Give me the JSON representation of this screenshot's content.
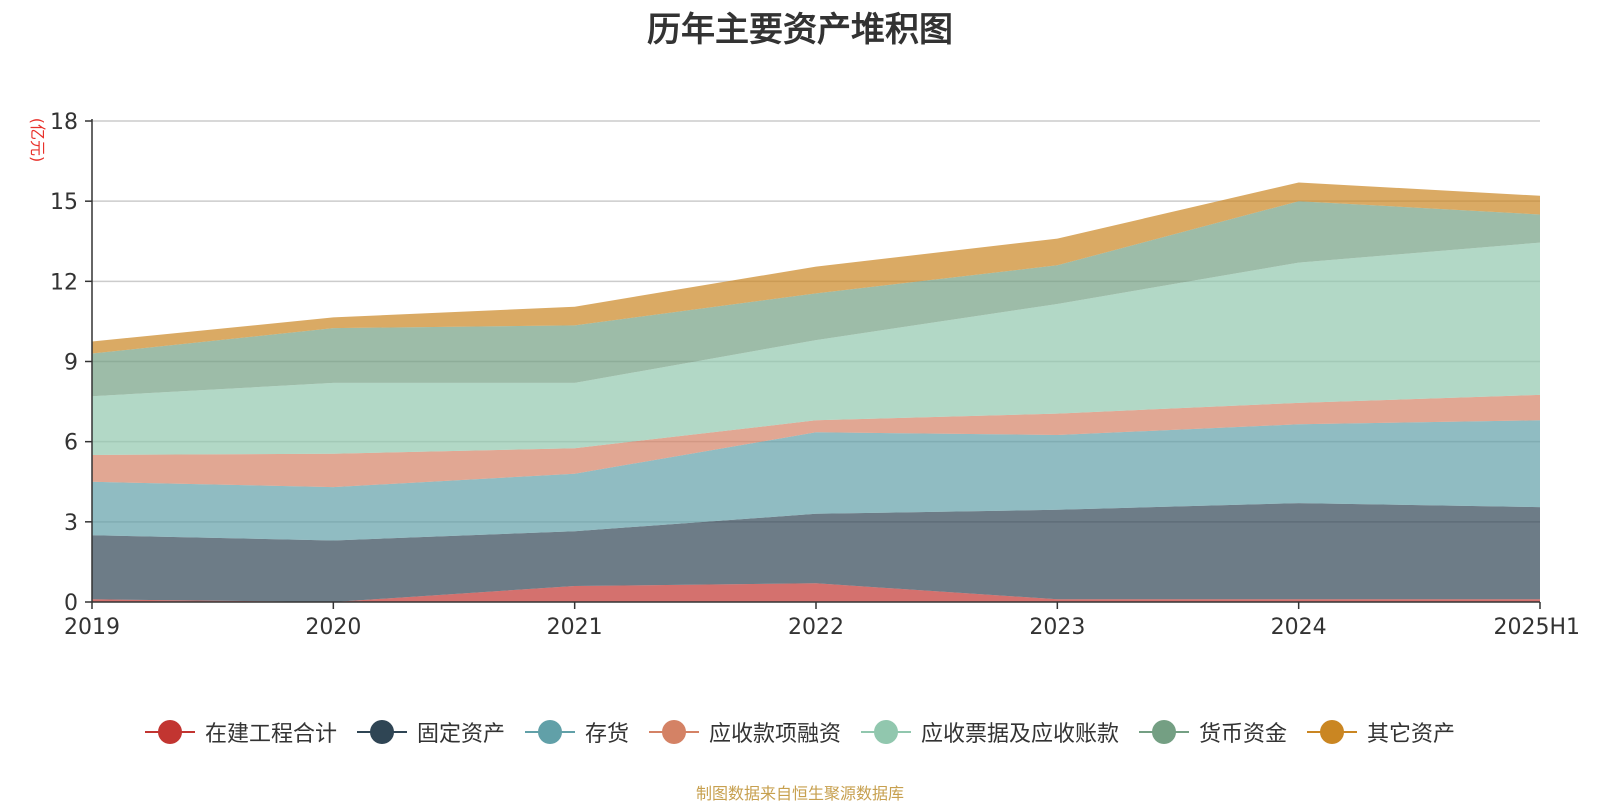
{
  "title": "历年主要资产堆积图",
  "source_note": "制图数据来自恒生聚源数据库",
  "chart_data": {
    "type": "area",
    "stacked": true,
    "title": "历年主要资产堆积图",
    "ylabel": "(亿元)",
    "ylim": [
      0,
      18
    ],
    "yticks": [
      0,
      3,
      6,
      9,
      12,
      15,
      18
    ],
    "grid": true,
    "legend_position": "bottom",
    "categories": [
      "2019",
      "2020",
      "2021",
      "2022",
      "2023",
      "2024",
      "2025H1"
    ],
    "series": [
      {
        "name": "在建工程合计",
        "color": "#c23531",
        "values": [
          0.1,
          0.0,
          0.6,
          0.7,
          0.1,
          0.1,
          0.1
        ]
      },
      {
        "name": "固定资产",
        "color": "#2f4554",
        "values": [
          2.4,
          2.3,
          2.05,
          2.6,
          3.35,
          3.6,
          3.45
        ]
      },
      {
        "name": "存货",
        "color": "#61a0a8",
        "values": [
          2.0,
          2.0,
          2.15,
          3.05,
          2.8,
          2.95,
          3.25
        ]
      },
      {
        "name": "应收款项融资",
        "color": "#d48265",
        "values": [
          1.0,
          1.25,
          0.95,
          0.45,
          0.8,
          0.8,
          0.95
        ]
      },
      {
        "name": "应收票据及应收账款",
        "color": "#91c7ae",
        "values": [
          2.2,
          2.65,
          2.45,
          3.0,
          4.1,
          5.25,
          5.7
        ]
      },
      {
        "name": "货币资金",
        "color": "#749f83",
        "values": [
          1.6,
          2.05,
          2.15,
          1.75,
          1.45,
          2.3,
          1.05
        ]
      },
      {
        "name": "其它资产",
        "color": "#ca8622",
        "values": [
          0.45,
          0.4,
          0.7,
          1.0,
          1.0,
          0.7,
          0.7
        ]
      }
    ]
  }
}
